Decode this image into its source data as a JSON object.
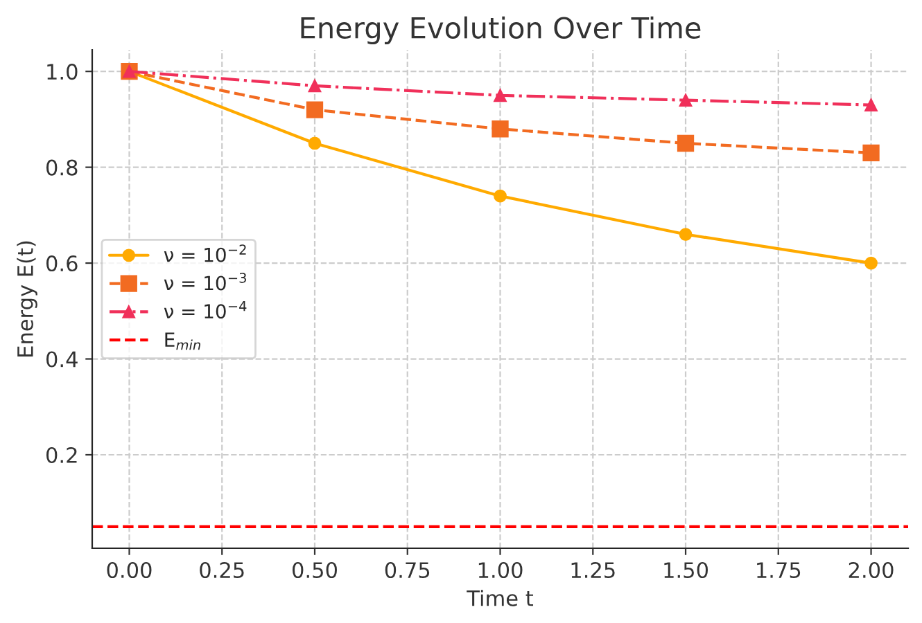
{
  "chart_data": {
    "type": "line",
    "title": "Energy Evolution Over Time",
    "xlabel": "Time t",
    "ylabel": "Energy E(t)",
    "x": [
      0,
      0.5,
      1,
      1.5,
      2
    ],
    "series": [
      {
        "name": "ν = 10$^{−2}$",
        "color": "#ffaa00",
        "values": [
          1.0,
          0.85,
          0.74,
          0.66,
          0.6
        ],
        "marker": "circle",
        "line_style": "solid"
      },
      {
        "name": "ν = 10$^{−3}$",
        "color": "#f26b21",
        "values": [
          1.0,
          0.92,
          0.88,
          0.85,
          0.83
        ],
        "marker": "square",
        "line_style": "dashed"
      },
      {
        "name": "ν = 10$^{−4}$",
        "color": "#f0305a",
        "values": [
          1.0,
          0.97,
          0.95,
          0.94,
          0.93
        ],
        "marker": "triangle",
        "line_style": "dashdot"
      }
    ],
    "ref_lines": [
      {
        "axis": "y",
        "value": 0.05,
        "label": "E$_{min}$",
        "color": "#ff0000",
        "line_style": "dashed"
      }
    ],
    "xlim": [
      -0.1,
      2.1
    ],
    "xticks": [
      {
        "value": 0,
        "label": "0.00"
      },
      {
        "value": 0.25,
        "label": "0.25"
      },
      {
        "value": 0.5,
        "label": "0.50"
      },
      {
        "value": 0.75,
        "label": "0.75"
      },
      {
        "value": 1,
        "label": "1.00"
      },
      {
        "value": 1.25,
        "label": "1.25"
      },
      {
        "value": 1.5,
        "label": "1.50"
      },
      {
        "value": 1.75,
        "label": "1.75"
      },
      {
        "value": 2,
        "label": "2.00"
      }
    ],
    "ylim": [
      0.005,
      1.045
    ],
    "yticks": [
      0.2,
      0.4,
      0.6,
      0.8,
      {
        "value": 1.0,
        "label": "1.0"
      }
    ],
    "grid": true,
    "legend": "center left"
  }
}
